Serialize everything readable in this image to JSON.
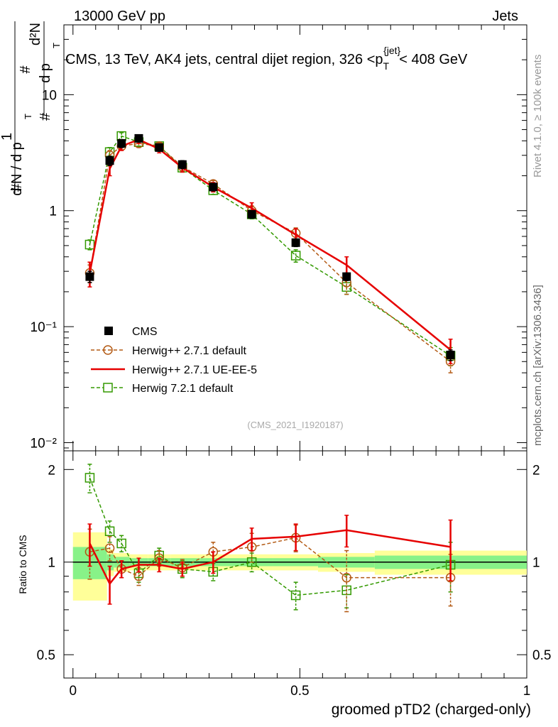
{
  "header": {
    "energy_label": "13000 GeV pp",
    "category_label": "Jets"
  },
  "title": {
    "prefix": "CMS, 13 TeV, AK4 jets, central dijet region, 326 <p",
    "sub": "T",
    "sup": "{jet}",
    "suffix": "< 408 GeV"
  },
  "y_axis_label": {
    "hash1": "#",
    "one": "1",
    "dN": "d N / d p",
    "dN_sub": "T",
    "hash2": "#",
    "d2N": "d²N",
    "dp": "d p",
    "dp_sub": "T",
    "dlambda": "d λ"
  },
  "side_labels": {
    "rivet": "Rivet 4.1.0, ≥ 100k events",
    "mcplots": "mcplots.cern.ch [arXiv:1306.3436]"
  },
  "analysis_id": "(CMS_2021_I1920187)",
  "x_axis_label": "groomed pTD2 (charged-only)",
  "ratio_axis_label": "Ratio to CMS",
  "legend": [
    {
      "key": "cms",
      "label": "CMS"
    },
    {
      "key": "hw271def",
      "label": "Herwig++ 2.7.1 default"
    },
    {
      "key": "hw271ue",
      "label": "Herwig++ 2.7.1 UE-EE-5"
    },
    {
      "key": "hw721",
      "label": "Herwig 7.2.1 default"
    }
  ],
  "colors": {
    "cms": "#000000",
    "hw271def": "#b35a14",
    "hw271ue": "#e60000",
    "hw721": "#339900",
    "band_inner": "#88f288",
    "band_outer": "#ffff99"
  },
  "chart_data": {
    "type": "line",
    "x_range": [
      -0.02,
      1.0
    ],
    "main_ylim": [
      0.0085,
      40
    ],
    "main_yscale": "log",
    "main_ticks": [
      {
        "value": 10,
        "label": "10"
      },
      {
        "value": 1,
        "label": "1"
      },
      {
        "value": 0.1,
        "label": "10⁻¹"
      },
      {
        "value": 0.01,
        "label": "10⁻²"
      }
    ],
    "ratio_ylim": [
      0.42,
      2.3
    ],
    "ratio_yscale": "log",
    "ratio_ticks": [
      {
        "value": 2,
        "label": "2"
      },
      {
        "value": 1,
        "label": "1"
      },
      {
        "value": 0.5,
        "label": "0.5"
      }
    ],
    "x_ticks": [
      {
        "value": 0,
        "label": "0"
      },
      {
        "value": 0.5,
        "label": "0.5"
      },
      {
        "value": 1,
        "label": "1"
      }
    ],
    "bins": [
      {
        "lo": 0.0,
        "hi": 0.075
      },
      {
        "lo": 0.075,
        "hi": 0.09
      },
      {
        "lo": 0.09,
        "hi": 0.125
      },
      {
        "lo": 0.125,
        "hi": 0.165
      },
      {
        "lo": 0.165,
        "hi": 0.215
      },
      {
        "lo": 0.215,
        "hi": 0.28
      },
      {
        "lo": 0.28,
        "hi": 0.35
      },
      {
        "lo": 0.35,
        "hi": 0.44
      },
      {
        "lo": 0.44,
        "hi": 0.54
      },
      {
        "lo": 0.54,
        "hi": 0.665
      },
      {
        "lo": 0.665,
        "hi": 1.0
      }
    ],
    "x": [
      0.037,
      0.081,
      0.107,
      0.145,
      0.19,
      0.241,
      0.309,
      0.394,
      0.491,
      0.603,
      0.832
    ],
    "series": [
      {
        "name": "CMS",
        "key": "cms",
        "values": [
          0.27,
          2.7,
          3.8,
          4.2,
          3.5,
          2.5,
          1.6,
          0.93,
          0.53,
          0.27,
          0.057
        ],
        "err": [
          0.03,
          0.25,
          0.3,
          0.3,
          0.25,
          0.2,
          0.12,
          0.07,
          0.04,
          0.02,
          0.006
        ]
      },
      {
        "name": "Herwig++ 2.7.1 default",
        "key": "hw271def",
        "values": [
          0.29,
          3.0,
          3.6,
          3.8,
          3.6,
          2.4,
          1.7,
          1.0,
          0.64,
          0.24,
          0.05
        ],
        "err": [
          0.05,
          0.3,
          0.25,
          0.3,
          0.25,
          0.2,
          0.12,
          0.1,
          0.07,
          0.05,
          0.01
        ]
      },
      {
        "name": "Herwig++ 2.7.1 UE-EE-5",
        "key": "hw271ue",
        "values": [
          0.29,
          2.3,
          3.6,
          4.1,
          3.4,
          2.35,
          1.6,
          1.05,
          0.62,
          0.34,
          0.063
        ],
        "err": [
          0.07,
          0.3,
          0.3,
          0.3,
          0.25,
          0.2,
          0.15,
          0.12,
          0.08,
          0.06,
          0.015
        ]
      },
      {
        "name": "Herwig 7.2.1 default",
        "key": "hw721",
        "values": [
          0.51,
          3.2,
          4.4,
          3.9,
          3.6,
          2.35,
          1.5,
          0.93,
          0.41,
          0.22,
          0.056
        ],
        "err": [
          0.05,
          0.3,
          0.3,
          0.3,
          0.25,
          0.2,
          0.12,
          0.08,
          0.05,
          0.03,
          0.01
        ]
      }
    ],
    "ratio": [
      {
        "key": "hw271def",
        "values": [
          1.08,
          1.11,
          0.95,
          0.9,
          1.03,
          0.96,
          1.08,
          1.12,
          1.2,
          0.89,
          0.89
        ],
        "err": [
          0.2,
          0.1,
          0.06,
          0.06,
          0.06,
          0.06,
          0.08,
          0.12,
          0.12,
          0.2,
          0.17
        ]
      },
      {
        "key": "hw271ue",
        "values": [
          1.15,
          0.85,
          0.95,
          0.98,
          0.98,
          0.95,
          1.0,
          1.19,
          1.21,
          1.27,
          1.12
        ],
        "err": [
          0.18,
          0.12,
          0.06,
          0.05,
          0.05,
          0.05,
          0.08,
          0.1,
          0.12,
          0.15,
          0.25
        ]
      },
      {
        "key": "hw721",
        "values": [
          1.88,
          1.26,
          1.15,
          0.92,
          1.05,
          0.95,
          0.93,
          1.0,
          0.78,
          0.81,
          0.98
        ],
        "err": [
          0.2,
          0.1,
          0.07,
          0.06,
          0.06,
          0.06,
          0.06,
          0.07,
          0.08,
          0.1,
          0.18
        ]
      }
    ],
    "band_inner": [
      0.12,
      0.06,
      0.04,
      0.03,
      0.03,
      0.03,
      0.03,
      0.03,
      0.03,
      0.04,
      0.05
    ],
    "band_outer": [
      0.25,
      0.1,
      0.07,
      0.06,
      0.06,
      0.06,
      0.06,
      0.06,
      0.06,
      0.07,
      0.09
    ]
  }
}
